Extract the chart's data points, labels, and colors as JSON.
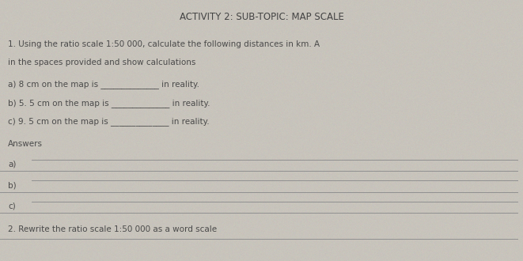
{
  "bg_color": "#c8c4bc",
  "title": "ACTIVITY 2: SUB-TOPIC: MAP SCALE",
  "title_fontsize": 8.5,
  "title_bold": false,
  "line1": "1. Using the ratio scale 1:50 000, calculate the following distances in km. A",
  "line2": "in the spaces provided and show calculations",
  "qa": "a) 8 cm on the map is ______________ in reality.",
  "qb": "b) 5. 5 cm on the map is ______________ in reality.",
  "qc": "c) 9. 5 cm on the map is ______________ in reality.",
  "answers_label": "Answers",
  "ans_a": "a)",
  "ans_b": "b)",
  "ans_c": "c)",
  "footer": "2. Rewrite the ratio scale 1:50 000 as a word scale",
  "text_color": "#4a4a4a",
  "line_color": "#909090",
  "font_size": 7.5,
  "title_color": "#444444"
}
